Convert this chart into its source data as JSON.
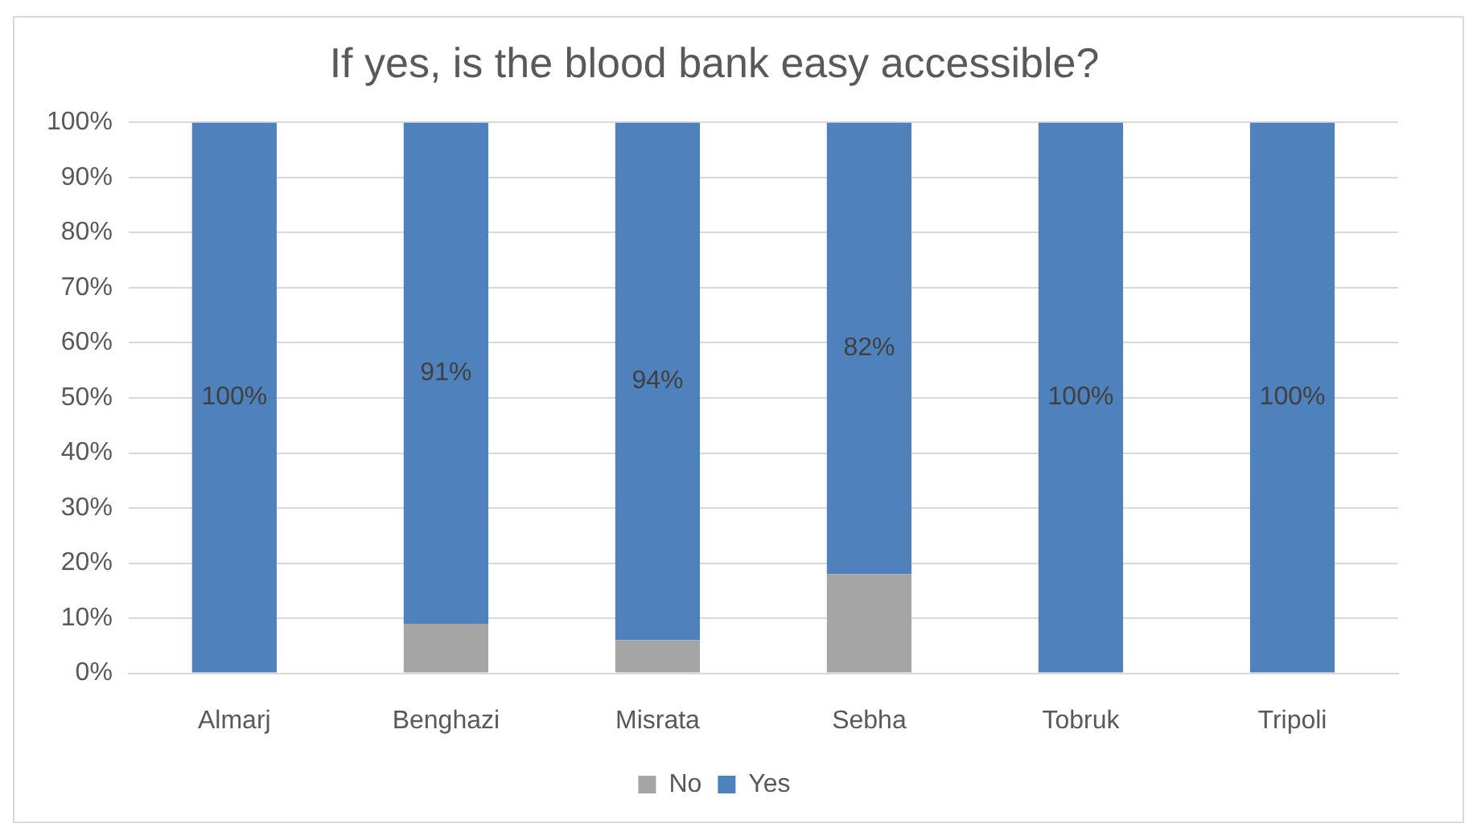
{
  "chart_data": {
    "type": "bar",
    "title": "If yes, is the blood bank easy accessible?",
    "categories": [
      "Almarj",
      "Benghazi",
      "Misrata",
      "Sebha",
      "Tobruk",
      "Tripoli"
    ],
    "series": [
      {
        "name": "No",
        "color": "#a5a5a5",
        "values": [
          0,
          9,
          6,
          18,
          0,
          0
        ]
      },
      {
        "name": "Yes",
        "color": "#4f81bd",
        "values": [
          100,
          91,
          94,
          82,
          100,
          100
        ],
        "value_labels": [
          "100%",
          "91%",
          "94%",
          "82%",
          "100%",
          "100%"
        ]
      }
    ],
    "stacked": true,
    "ylim": [
      0,
      100
    ],
    "yticks": [
      {
        "value": 0,
        "label": "0%"
      },
      {
        "value": 10,
        "label": "10%"
      },
      {
        "value": 20,
        "label": "20%"
      },
      {
        "value": 30,
        "label": "30%"
      },
      {
        "value": 40,
        "label": "40%"
      },
      {
        "value": 50,
        "label": "50%"
      },
      {
        "value": 60,
        "label": "60%"
      },
      {
        "value": 70,
        "label": "70%"
      },
      {
        "value": 80,
        "label": "80%"
      },
      {
        "value": 90,
        "label": "90%"
      },
      {
        "value": 100,
        "label": "100%"
      }
    ],
    "grid": "y",
    "legend": "bottom"
  }
}
